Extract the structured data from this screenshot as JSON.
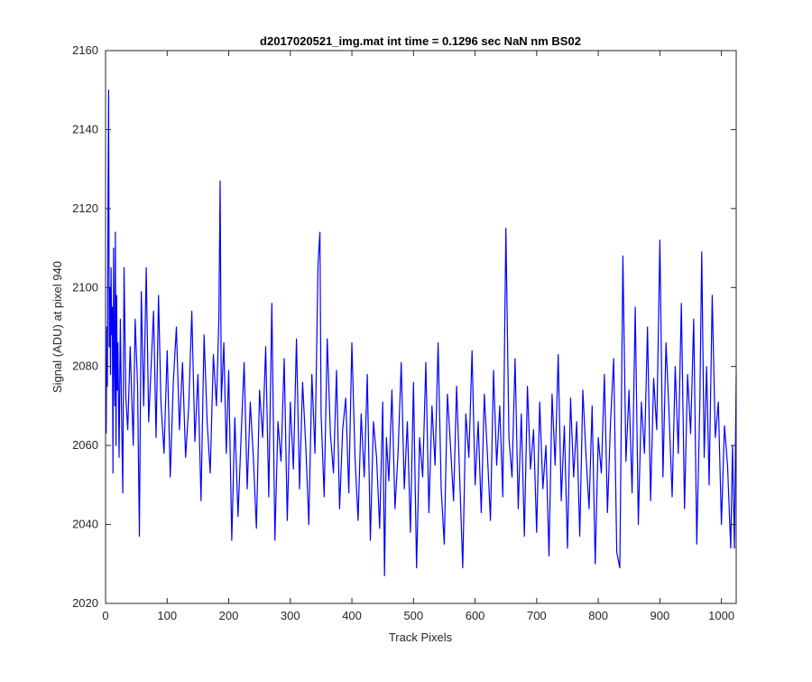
{
  "chart_data": {
    "type": "line",
    "title": "d2017020521_img.mat int time = 0.1296 sec  NaN nm BS02",
    "xlabel": "Track Pixels",
    "ylabel": "Signal (ADU) at pixel 940",
    "xlim": [
      0,
      1024
    ],
    "ylim": [
      2020,
      2160
    ],
    "xticks": [
      0,
      100,
      200,
      300,
      400,
      500,
      600,
      700,
      800,
      900,
      1000
    ],
    "yticks": [
      2020,
      2040,
      2060,
      2080,
      2100,
      2120,
      2140,
      2160
    ],
    "grid": false,
    "legend": "none",
    "series": [
      {
        "color": "#0000ff",
        "x_start": 1,
        "x_step": 1,
        "values_note": "noisy trace with ~1024 samples; representative points digitized below",
        "points": [
          [
            1,
            2063
          ],
          [
            2,
            2090
          ],
          [
            3,
            2075
          ],
          [
            4,
            2120
          ],
          [
            5,
            2150
          ],
          [
            6,
            2085
          ],
          [
            7,
            2100
          ],
          [
            8,
            2078
          ],
          [
            9,
            2105
          ],
          [
            10,
            2088
          ],
          [
            11,
            2095
          ],
          [
            12,
            2053
          ],
          [
            13,
            2110
          ],
          [
            14,
            2082
          ],
          [
            15,
            2070
          ],
          [
            16,
            2114
          ],
          [
            17,
            2060
          ],
          [
            18,
            2098
          ],
          [
            19,
            2074
          ],
          [
            20,
            2086
          ],
          [
            22,
            2057
          ],
          [
            24,
            2092
          ],
          [
            26,
            2068
          ],
          [
            28,
            2048
          ],
          [
            30,
            2105
          ],
          [
            33,
            2072
          ],
          [
            36,
            2064
          ],
          [
            40,
            2085
          ],
          [
            45,
            2060
          ],
          [
            48,
            2092
          ],
          [
            52,
            2075
          ],
          [
            55,
            2037
          ],
          [
            58,
            2099
          ],
          [
            62,
            2070
          ],
          [
            66,
            2105
          ],
          [
            70,
            2066
          ],
          [
            74,
            2080
          ],
          [
            78,
            2094
          ],
          [
            82,
            2062
          ],
          [
            86,
            2098
          ],
          [
            90,
            2071
          ],
          [
            95,
            2058
          ],
          [
            100,
            2084
          ],
          [
            105,
            2052
          ],
          [
            110,
            2076
          ],
          [
            115,
            2090
          ],
          [
            120,
            2064
          ],
          [
            125,
            2081
          ],
          [
            130,
            2057
          ],
          [
            135,
            2070
          ],
          [
            140,
            2094
          ],
          [
            145,
            2061
          ],
          [
            150,
            2078
          ],
          [
            155,
            2046
          ],
          [
            160,
            2088
          ],
          [
            165,
            2066
          ],
          [
            170,
            2053
          ],
          [
            175,
            2083
          ],
          [
            180,
            2070
          ],
          [
            184,
            2092
          ],
          [
            186,
            2127
          ],
          [
            188,
            2071
          ],
          [
            192,
            2086
          ],
          [
            196,
            2058
          ],
          [
            200,
            2079
          ],
          [
            205,
            2036
          ],
          [
            210,
            2067
          ],
          [
            215,
            2042
          ],
          [
            220,
            2062
          ],
          [
            225,
            2081
          ],
          [
            230,
            2049
          ],
          [
            235,
            2071
          ],
          [
            240,
            2057
          ],
          [
            245,
            2039
          ],
          [
            250,
            2074
          ],
          [
            255,
            2062
          ],
          [
            260,
            2085
          ],
          [
            265,
            2047
          ],
          [
            270,
            2096
          ],
          [
            275,
            2036
          ],
          [
            280,
            2066
          ],
          [
            285,
            2056
          ],
          [
            290,
            2082
          ],
          [
            295,
            2041
          ],
          [
            300,
            2071
          ],
          [
            305,
            2054
          ],
          [
            310,
            2087
          ],
          [
            315,
            2049
          ],
          [
            320,
            2076
          ],
          [
            325,
            2060
          ],
          [
            330,
            2040
          ],
          [
            335,
            2078
          ],
          [
            340,
            2058
          ],
          [
            345,
            2106
          ],
          [
            348,
            2114
          ],
          [
            350,
            2068
          ],
          [
            355,
            2047
          ],
          [
            360,
            2087
          ],
          [
            365,
            2063
          ],
          [
            370,
            2053
          ],
          [
            375,
            2079
          ],
          [
            380,
            2044
          ],
          [
            385,
            2064
          ],
          [
            390,
            2072
          ],
          [
            395,
            2048
          ],
          [
            400,
            2086
          ],
          [
            405,
            2057
          ],
          [
            410,
            2041
          ],
          [
            415,
            2068
          ],
          [
            420,
            2052
          ],
          [
            425,
            2078
          ],
          [
            430,
            2036
          ],
          [
            435,
            2066
          ],
          [
            440,
            2057
          ],
          [
            445,
            2039
          ],
          [
            450,
            2071
          ],
          [
            453,
            2027
          ],
          [
            456,
            2062
          ],
          [
            460,
            2051
          ],
          [
            465,
            2074
          ],
          [
            470,
            2044
          ],
          [
            475,
            2058
          ],
          [
            480,
            2081
          ],
          [
            485,
            2049
          ],
          [
            490,
            2066
          ],
          [
            495,
            2038
          ],
          [
            500,
            2076
          ],
          [
            505,
            2029
          ],
          [
            510,
            2062
          ],
          [
            515,
            2052
          ],
          [
            520,
            2081
          ],
          [
            525,
            2043
          ],
          [
            530,
            2070
          ],
          [
            535,
            2055
          ],
          [
            540,
            2086
          ],
          [
            545,
            2049
          ],
          [
            550,
            2035
          ],
          [
            555,
            2073
          ],
          [
            560,
            2060
          ],
          [
            565,
            2046
          ],
          [
            570,
            2075
          ],
          [
            575,
            2052
          ],
          [
            580,
            2029
          ],
          [
            585,
            2068
          ],
          [
            590,
            2057
          ],
          [
            595,
            2084
          ],
          [
            600,
            2050
          ],
          [
            605,
            2066
          ],
          [
            610,
            2043
          ],
          [
            615,
            2073
          ],
          [
            620,
            2058
          ],
          [
            625,
            2041
          ],
          [
            630,
            2079
          ],
          [
            635,
            2055
          ],
          [
            640,
            2070
          ],
          [
            645,
            2047
          ],
          [
            650,
            2115
          ],
          [
            655,
            2062
          ],
          [
            660,
            2052
          ],
          [
            665,
            2082
          ],
          [
            670,
            2044
          ],
          [
            675,
            2068
          ],
          [
            680,
            2037
          ],
          [
            685,
            2075
          ],
          [
            690,
            2054
          ],
          [
            695,
            2064
          ],
          [
            700,
            2038
          ],
          [
            705,
            2071
          ],
          [
            710,
            2049
          ],
          [
            715,
            2060
          ],
          [
            720,
            2032
          ],
          [
            725,
            2073
          ],
          [
            730,
            2055
          ],
          [
            735,
            2083
          ],
          [
            740,
            2046
          ],
          [
            745,
            2065
          ],
          [
            750,
            2034
          ],
          [
            755,
            2072
          ],
          [
            760,
            2052
          ],
          [
            765,
            2066
          ],
          [
            770,
            2037
          ],
          [
            775,
            2074
          ],
          [
            780,
            2058
          ],
          [
            785,
            2044
          ],
          [
            790,
            2070
          ],
          [
            795,
            2030
          ],
          [
            800,
            2062
          ],
          [
            805,
            2053
          ],
          [
            810,
            2078
          ],
          [
            815,
            2043
          ],
          [
            820,
            2066
          ],
          [
            825,
            2082
          ],
          [
            830,
            2033
          ],
          [
            835,
            2029
          ],
          [
            840,
            2108
          ],
          [
            845,
            2056
          ],
          [
            850,
            2074
          ],
          [
            855,
            2048
          ],
          [
            860,
            2095
          ],
          [
            865,
            2040
          ],
          [
            870,
            2071
          ],
          [
            875,
            2058
          ],
          [
            880,
            2090
          ],
          [
            885,
            2046
          ],
          [
            890,
            2077
          ],
          [
            895,
            2064
          ],
          [
            900,
            2112
          ],
          [
            905,
            2052
          ],
          [
            910,
            2086
          ],
          [
            915,
            2068
          ],
          [
            920,
            2047
          ],
          [
            925,
            2080
          ],
          [
            930,
            2058
          ],
          [
            935,
            2096
          ],
          [
            940,
            2044
          ],
          [
            945,
            2078
          ],
          [
            950,
            2063
          ],
          [
            955,
            2092
          ],
          [
            960,
            2035
          ],
          [
            965,
            2071
          ],
          [
            968,
            2109
          ],
          [
            972,
            2057
          ],
          [
            976,
            2080
          ],
          [
            980,
            2050
          ],
          [
            985,
            2098
          ],
          [
            990,
            2062
          ],
          [
            995,
            2071
          ],
          [
            1000,
            2040
          ],
          [
            1005,
            2065
          ],
          [
            1010,
            2055
          ],
          [
            1015,
            2034
          ],
          [
            1018,
            2060
          ],
          [
            1021,
            2034
          ],
          [
            1024,
            2078
          ]
        ]
      }
    ]
  }
}
